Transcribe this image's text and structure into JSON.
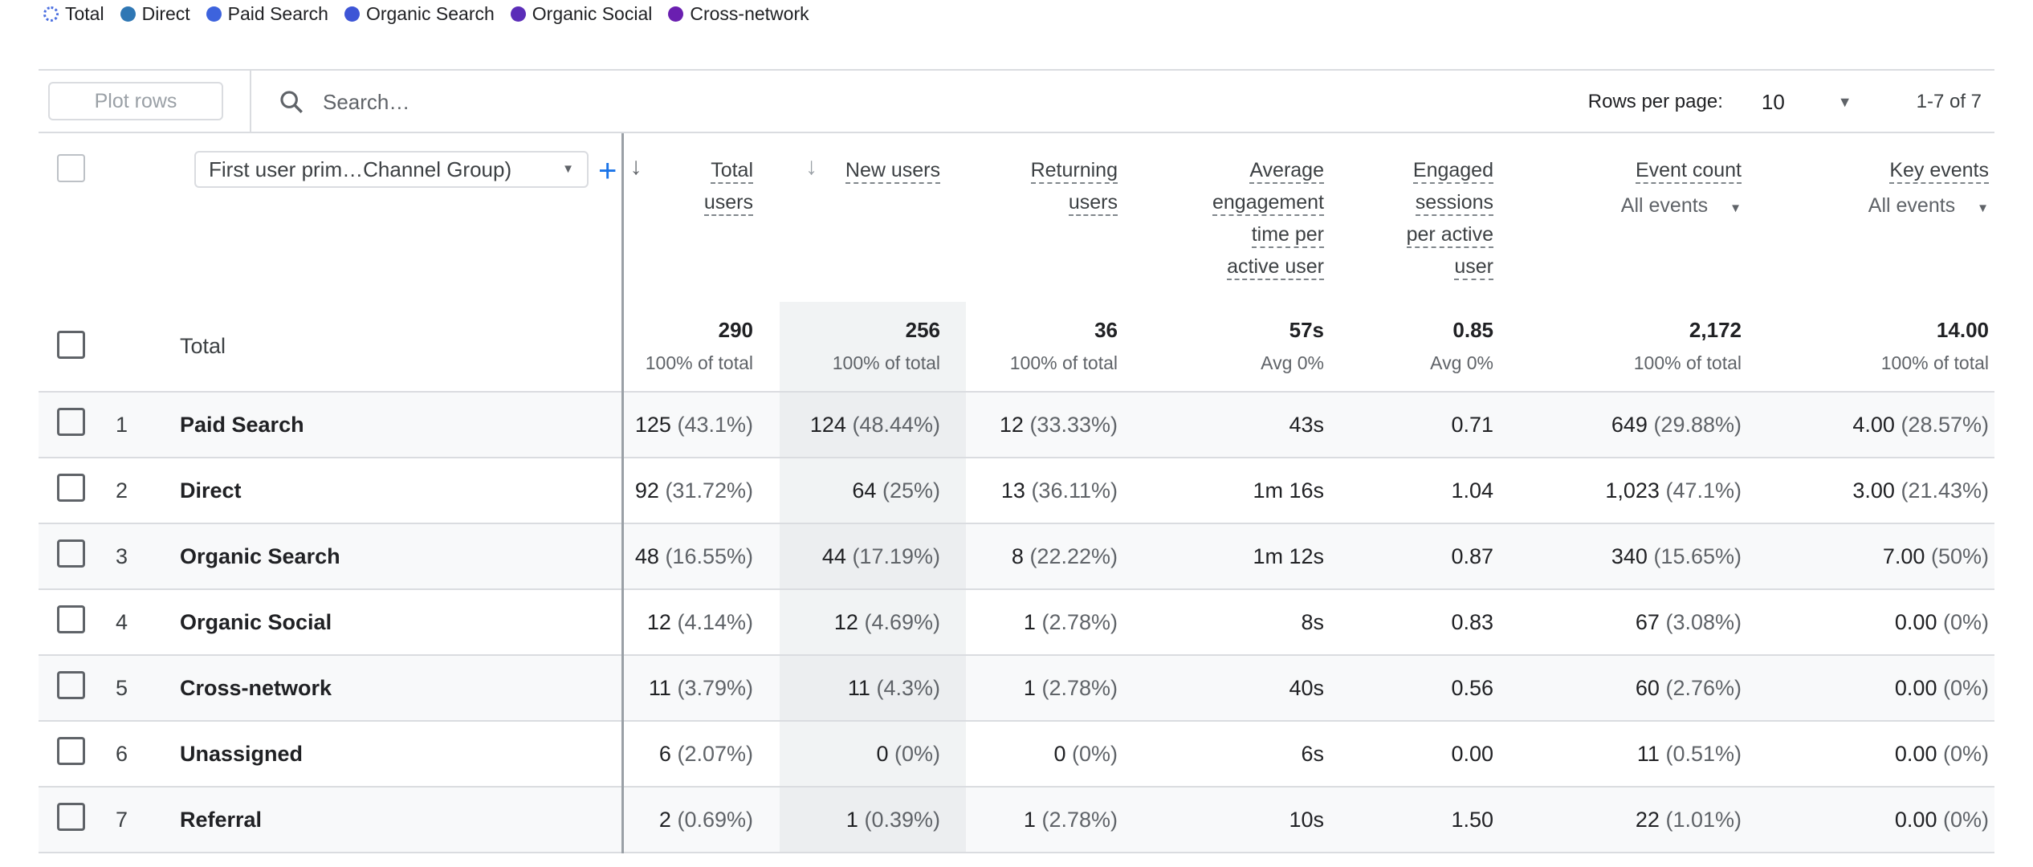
{
  "legend": [
    {
      "label": "Total",
      "color": "#4a6ee0",
      "style": "dashed"
    },
    {
      "label": "Direct",
      "color": "#2f77b4"
    },
    {
      "label": "Paid Search",
      "color": "#3d63dd"
    },
    {
      "label": "Organic Search",
      "color": "#3d55d6"
    },
    {
      "label": "Organic Social",
      "color": "#5b2db8"
    },
    {
      "label": "Cross-network",
      "color": "#6a1fb0"
    }
  ],
  "toolbar": {
    "plot_rows": "Plot rows",
    "search_placeholder": "Search…",
    "rows_per_page_label": "Rows per page:",
    "rows_per_page": "10",
    "pagination": "1-7 of 7"
  },
  "dimension": {
    "selector": "First user prim…Channel Group)",
    "add": "+"
  },
  "headers": {
    "total_users": [
      "Total",
      "users"
    ],
    "new_users": [
      "New users"
    ],
    "returning_users": [
      "Returning",
      "users"
    ],
    "avg_engagement": [
      "Average",
      "engagement",
      "time per",
      "active user"
    ],
    "engaged_sessions": [
      "Engaged",
      "sessions",
      "per active",
      "user"
    ],
    "event_count": [
      "Event count"
    ],
    "event_count_filter": "All events",
    "key_events": [
      "Key events"
    ],
    "key_events_filter": "All events"
  },
  "totals": {
    "label": "Total",
    "values": [
      [
        "290",
        "100% of total"
      ],
      [
        "256",
        "100% of total"
      ],
      [
        "36",
        "100% of total"
      ],
      [
        "57s",
        "Avg 0%"
      ],
      [
        "0.85",
        "Avg 0%"
      ],
      [
        "2,172",
        "100% of total"
      ],
      [
        "14.00",
        "100% of total"
      ]
    ]
  },
  "rows": [
    {
      "n": "1",
      "label": "Paid Search",
      "cells": [
        [
          "125",
          "(43.1%)"
        ],
        [
          "124",
          "(48.44%)"
        ],
        [
          "12",
          "(33.33%)"
        ],
        [
          "43s",
          ""
        ],
        [
          "0.71",
          ""
        ],
        [
          "649",
          "(29.88%)"
        ],
        [
          "4.00",
          "(28.57%)"
        ]
      ]
    },
    {
      "n": "2",
      "label": "Direct",
      "cells": [
        [
          "92",
          "(31.72%)"
        ],
        [
          "64",
          "(25%)"
        ],
        [
          "13",
          "(36.11%)"
        ],
        [
          "1m 16s",
          ""
        ],
        [
          "1.04",
          ""
        ],
        [
          "1,023",
          "(47.1%)"
        ],
        [
          "3.00",
          "(21.43%)"
        ]
      ]
    },
    {
      "n": "3",
      "label": "Organic Search",
      "cells": [
        [
          "48",
          "(16.55%)"
        ],
        [
          "44",
          "(17.19%)"
        ],
        [
          "8",
          "(22.22%)"
        ],
        [
          "1m 12s",
          ""
        ],
        [
          "0.87",
          ""
        ],
        [
          "340",
          "(15.65%)"
        ],
        [
          "7.00",
          "(50%)"
        ]
      ]
    },
    {
      "n": "4",
      "label": "Organic Social",
      "cells": [
        [
          "12",
          "(4.14%)"
        ],
        [
          "12",
          "(4.69%)"
        ],
        [
          "1",
          "(2.78%)"
        ],
        [
          "8s",
          ""
        ],
        [
          "0.83",
          ""
        ],
        [
          "67",
          "(3.08%)"
        ],
        [
          "0.00",
          "(0%)"
        ]
      ]
    },
    {
      "n": "5",
      "label": "Cross-network",
      "cells": [
        [
          "11",
          "(3.79%)"
        ],
        [
          "11",
          "(4.3%)"
        ],
        [
          "1",
          "(2.78%)"
        ],
        [
          "40s",
          ""
        ],
        [
          "0.56",
          ""
        ],
        [
          "60",
          "(2.76%)"
        ],
        [
          "0.00",
          "(0%)"
        ]
      ]
    },
    {
      "n": "6",
      "label": "Unassigned",
      "cells": [
        [
          "6",
          "(2.07%)"
        ],
        [
          "0",
          "(0%)"
        ],
        [
          "0",
          "(0%)"
        ],
        [
          "6s",
          ""
        ],
        [
          "0.00",
          ""
        ],
        [
          "11",
          "(0.51%)"
        ],
        [
          "0.00",
          "(0%)"
        ]
      ]
    },
    {
      "n": "7",
      "label": "Referral",
      "cells": [
        [
          "2",
          "(0.69%)"
        ],
        [
          "1",
          "(0.39%)"
        ],
        [
          "1",
          "(2.78%)"
        ],
        [
          "10s",
          ""
        ],
        [
          "1.50",
          ""
        ],
        [
          "22",
          "(1.01%)"
        ],
        [
          "0.00",
          "(0%)"
        ]
      ]
    }
  ]
}
